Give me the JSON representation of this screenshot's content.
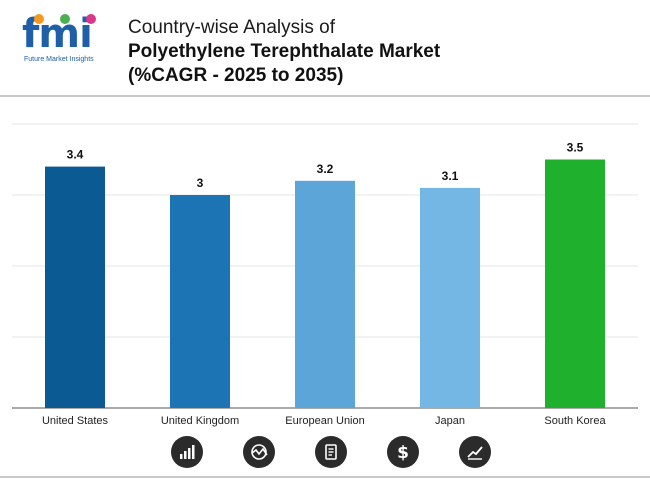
{
  "header": {
    "logo_text": "fmi",
    "logo_subtitle": "Future Market Insights",
    "title_line1": "Country-wise Analysis of",
    "title_line2": "Polyethylene Terephthalate Market",
    "title_line3": "(%CAGR - 2025 to 2035)"
  },
  "colors": {
    "bars": [
      "#0b5a93",
      "#1c74b4",
      "#5ba5d8",
      "#74b6e4",
      "#1fb02d"
    ],
    "grid": "#e6e6e6",
    "axis": "#555555"
  },
  "chart_data": {
    "type": "bar",
    "title": "Country-wise Analysis of Polyethylene Terephthalate Market (%CAGR - 2025 to 2035)",
    "categories": [
      "United States",
      "United Kingdom",
      "European Union",
      "Japan",
      "South Korea"
    ],
    "values": [
      3.4,
      3,
      3.2,
      3.1,
      3.5
    ],
    "value_labels": [
      "3.4",
      "3",
      "3.2",
      "3.1",
      "3.5"
    ],
    "xlabel": "",
    "ylabel": "",
    "ylim": [
      0,
      4
    ],
    "grid": true
  },
  "footer_icons": [
    "bar-chart-icon",
    "globe-trend-icon",
    "document-icon",
    "dollar-icon",
    "growth-chart-icon"
  ]
}
